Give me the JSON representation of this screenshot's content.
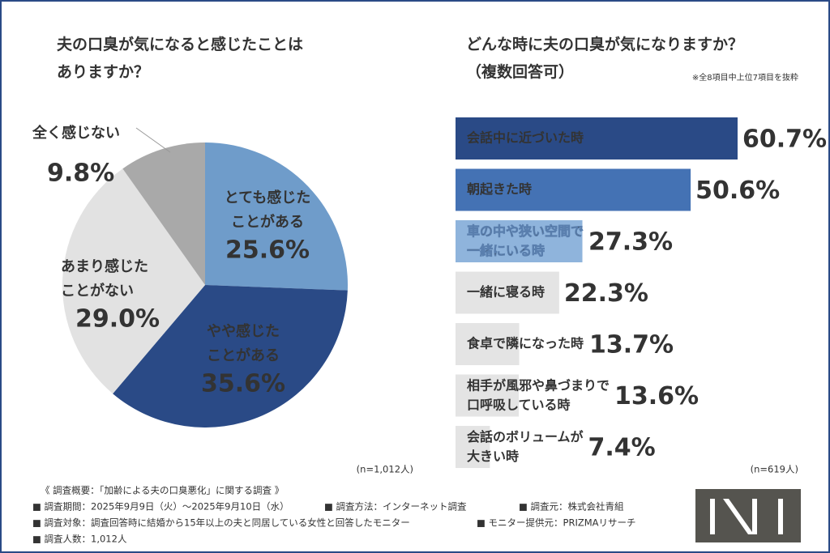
{
  "chart_data": [
    {
      "type": "pie",
      "title": "夫の口臭が気になると感じたことは\nありますか？",
      "categories": [
        "とても感じた\nことがある",
        "やや感じた\nことがある",
        "あまり感じた\nことがない",
        "全く感じない"
      ],
      "values": [
        25.6,
        35.6,
        29.0,
        9.8
      ],
      "value_labels": [
        "25.6%",
        "35.6%",
        "29.0%",
        "9.8%"
      ],
      "colors": [
        "#6f9cca",
        "#2a4a86",
        "#e2e2e2",
        "#a9a9a9"
      ],
      "note": "(n=1,012人)"
    },
    {
      "type": "hbar",
      "title": "どんな時に夫の口臭が気になりますか？\n（複数回答可）",
      "subtitle": "※全8項目中上位7項目を抜粋",
      "categories": [
        "会話中に近づいた時",
        "朝起きた時",
        "車の中や狭い空間で\n一緒にいる時",
        "一緒に寝る時",
        "食卓で隣になった時",
        "相手が風邪や鼻づまりで\n口呼吸している時",
        "会話のボリュームが\n大きい時"
      ],
      "values": [
        60.7,
        50.6,
        27.3,
        22.3,
        13.7,
        13.6,
        7.4
      ],
      "value_labels": [
        "60.7%",
        "50.6%",
        "27.3%",
        "22.3%",
        "13.7%",
        "13.6%",
        "7.4%"
      ],
      "colors": [
        "#2a4a86",
        "#4472b4",
        "#8fb4dc",
        "#e4e4e4",
        "#e4e4e4",
        "#e4e4e4",
        "#e4e4e4"
      ],
      "note": "(n=619人)"
    }
  ],
  "footer": [
    "《 調査概要：「加齢による夫の口臭悪化」に関する調査 》",
    "■ 調査期間：2025年9月9日（火）〜2025年9月10日（水）",
    "■ 調査方法：インターネット調査",
    "■ 調査元：株式会社青組",
    "■ 調査対象：調査回答時に結婚から15年以上の夫と同居している女性と回答したモニター",
    "■ モニター提供元：PRIZMAリサーチ",
    "■ 調査人数：1,012人"
  ]
}
